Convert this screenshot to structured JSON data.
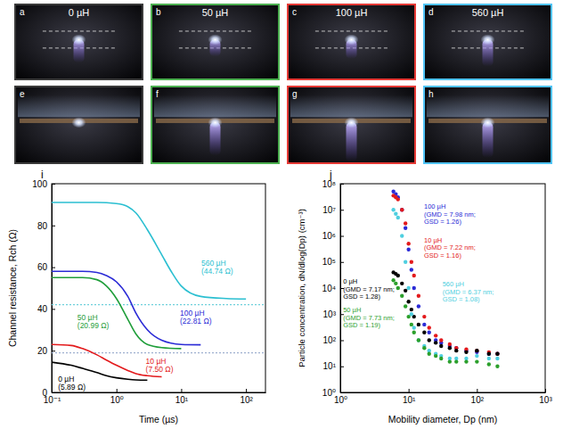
{
  "photos": [
    {
      "letter": "a",
      "label": "0 µH",
      "color": "#3a3a3a"
    },
    {
      "letter": "b",
      "label": "50 µH",
      "color": "#4caf50"
    },
    {
      "letter": "c",
      "label": "100 µH",
      "color": "#e53935"
    },
    {
      "letter": "d",
      "label": "560 µH",
      "color": "#4fc3f7"
    },
    {
      "letter": "e",
      "color": "#3a3a3a"
    },
    {
      "letter": "f",
      "color": "#4caf50"
    },
    {
      "letter": "g",
      "color": "#e53935"
    },
    {
      "letter": "h",
      "color": "#4fc3f7"
    }
  ],
  "chart_data": [
    {
      "type": "line",
      "letter": "i",
      "x_label": "Time (µs)",
      "y_label": "Channel resistance, Rch (Ω)",
      "log": "x",
      "xlim": [
        0.1,
        200
      ],
      "xticks": [
        {
          "value": 0.1,
          "label": "10⁻¹"
        },
        {
          "value": 1,
          "label": "10⁰"
        },
        {
          "value": 10,
          "label": "10¹"
        },
        {
          "value": 100,
          "label": "10²"
        }
      ],
      "ylim": [
        0,
        100
      ],
      "yticks": [
        0,
        20,
        40,
        60,
        80,
        100
      ],
      "hlines": [
        {
          "value": 19,
          "color": "#9fb0d0"
        },
        {
          "value": 42,
          "color": "#6fd0dc"
        }
      ],
      "series": [
        {
          "name": "0 µH",
          "annotation": "(5.89 Ω)",
          "color": "#000000",
          "line_style": "solid",
          "x": [
            0.1,
            0.2,
            0.3,
            0.5,
            0.7,
            1,
            1.5,
            2,
            3
          ],
          "values": [
            14.5,
            13,
            11.5,
            9.5,
            8,
            7,
            6.3,
            6,
            5.89
          ]
        },
        {
          "name": "10 µH",
          "annotation": "(7.50 Ω)",
          "color": "#e31a1c",
          "line_style": "solid",
          "x": [
            0.1,
            0.2,
            0.3,
            0.5,
            0.7,
            1,
            1.5,
            2,
            3,
            5
          ],
          "values": [
            23,
            22.5,
            21,
            18,
            15.5,
            13,
            10.5,
            9,
            8,
            7.5
          ]
        },
        {
          "name": "50 µH",
          "annotation": "(20.99 Ω)",
          "color": "#1f9e3a",
          "line_style": "solid",
          "x": [
            0.1,
            0.3,
            0.5,
            0.7,
            1,
            1.5,
            2,
            3,
            5,
            10
          ],
          "values": [
            55,
            55,
            54,
            51,
            45,
            35,
            28,
            23,
            21.5,
            20.99
          ]
        },
        {
          "name": "100 µH",
          "annotation": "(22.81 Ω)",
          "color": "#2b2bd6",
          "line_style": "solid",
          "x": [
            0.1,
            0.3,
            0.5,
            0.7,
            1,
            1.5,
            2,
            3,
            5,
            10,
            20
          ],
          "values": [
            58,
            58,
            57.5,
            56,
            53,
            46,
            38,
            30,
            25,
            23,
            22.81
          ]
        },
        {
          "name": "560 µH",
          "annotation": "(44.74 Ω)",
          "color": "#2bbfd1",
          "line_style": "solid",
          "x": [
            0.1,
            0.5,
            1,
            1.5,
            2,
            3,
            5,
            7,
            10,
            20,
            50,
            100
          ],
          "values": [
            91,
            91,
            90.5,
            89,
            86,
            78,
            66,
            58,
            51,
            46,
            45,
            44.74
          ]
        }
      ]
    },
    {
      "type": "scatter",
      "letter": "j",
      "x_label": "Mobility diameter, Dp (nm)",
      "y_label": "Particle concentration, dN/dlog(Dp) (cm⁻³)",
      "log": true,
      "marker": "circle",
      "xlim": [
        1,
        1000
      ],
      "xticks": [
        {
          "value": 1,
          "label": "10⁰"
        },
        {
          "value": 10,
          "label": "10¹"
        },
        {
          "value": 100,
          "label": "10²"
        },
        {
          "value": 1000,
          "label": "10³"
        }
      ],
      "ylim": [
        1,
        100000000
      ],
      "yticks": [
        {
          "value": 1,
          "label": "10⁰"
        },
        {
          "value": 10,
          "label": "10¹"
        },
        {
          "value": 100,
          "label": "10²"
        },
        {
          "value": 1000,
          "label": "10³"
        },
        {
          "value": 10000,
          "label": "10⁴"
        },
        {
          "value": 100000,
          "label": "10⁵"
        },
        {
          "value": 1000000,
          "label": "10⁶"
        },
        {
          "value": 10000000,
          "label": "10⁷"
        },
        {
          "value": 100000000,
          "label": "10⁸"
        }
      ],
      "x": [
        6,
        6.5,
        7,
        8,
        9,
        10,
        11,
        12,
        14,
        17,
        20,
        25,
        30,
        40,
        50,
        70,
        100,
        150,
        200
      ],
      "series": [
        {
          "name": "100 µH",
          "annotation": [
            "(GMD = 7.98 nm;",
            "GSD = 1.26)"
          ],
          "color": "#2b2bd6",
          "values": [
            50000000,
            40000000,
            30000000,
            10000000,
            2000000,
            300000,
            50000,
            10000,
            2000,
            400,
            200,
            100,
            80,
            60,
            50,
            40,
            35,
            30,
            30
          ]
        },
        {
          "name": "10 µH",
          "annotation": [
            "(GMD = 7.22 nm;",
            "GSD = 1.16)"
          ],
          "color": "#e31a1c",
          "values": [
            35000000,
            30000000,
            25000000,
            10000000,
            3000000,
            500000,
            100000,
            30000,
            5000,
            800,
            300,
            150,
            100,
            70,
            50,
            45,
            40,
            35,
            30
          ]
        },
        {
          "name": "0 µH",
          "annotation": [
            "(GMD = 7.17 nm;",
            "GSD = 1.28)"
          ],
          "color": "#000000",
          "values": [
            40000,
            35000,
            30000,
            15000,
            8000,
            3000,
            1500,
            800,
            400,
            200,
            100,
            80,
            60,
            50,
            40,
            35,
            40,
            30,
            30
          ]
        },
        {
          "name": "560 µH",
          "annotation": [
            "(GMD = 6.37 nm;",
            "GSD = 1.08)"
          ],
          "color": "#4fcfe0",
          "values": [
            10000000,
            7000000,
            5000000,
            1000000,
            100000,
            10000,
            1000,
            300,
            100,
            60,
            40,
            30,
            25,
            20,
            20,
            20,
            25,
            20,
            20
          ]
        },
        {
          "name": "50 µH",
          "annotation": [
            "(GMD = 7.73 nm;",
            "GSD = 1.19)"
          ],
          "color": "#2ca02c",
          "values": [
            20000,
            15000,
            10000,
            5000,
            2000,
            800,
            400,
            200,
            100,
            50,
            30,
            25,
            20,
            15,
            15,
            15,
            15,
            12,
            10
          ]
        }
      ]
    }
  ]
}
